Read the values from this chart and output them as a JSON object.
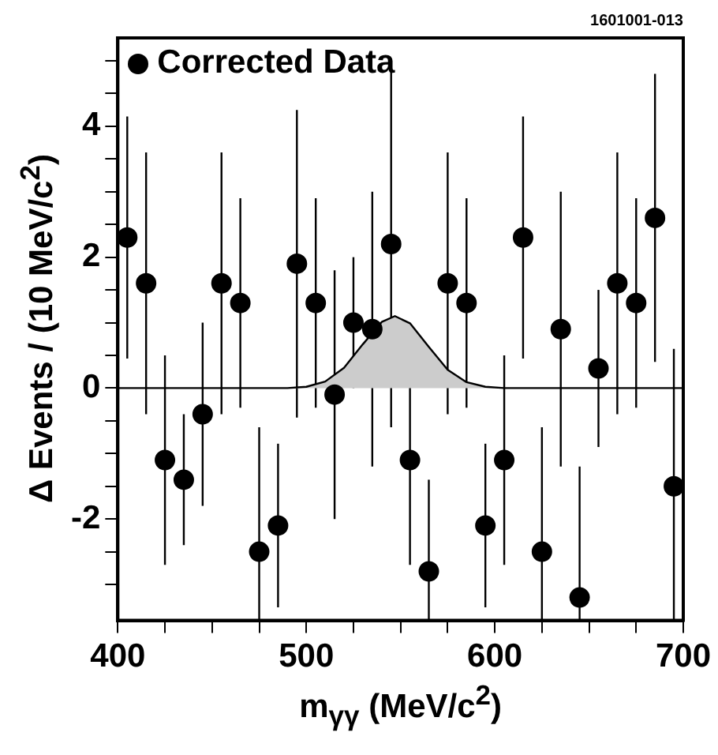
{
  "chart_data": {
    "type": "scatter",
    "xlabel": "m$_{γγ}$ (MeV/c$^{2}$)",
    "ylabel": "Δ Events / (10 MeV/c$^{2}$)",
    "annotations": [
      "1601001-013"
    ],
    "xlim": [
      400,
      700
    ],
    "xticks": [
      400,
      {
        "value": 425,
        "label": null
      },
      {
        "value": 450,
        "label": null
      },
      {
        "value": 475,
        "label": null
      },
      500,
      {
        "value": 525,
        "label": null
      },
      {
        "value": 550,
        "label": null
      },
      {
        "value": 575,
        "label": null
      },
      600,
      {
        "value": 625,
        "label": null
      },
      {
        "value": 650,
        "label": null
      },
      {
        "value": 675,
        "label": null
      },
      700
    ],
    "ylim": [
      -3.55,
      5.35
    ],
    "yticks": [
      {
        "value": -3,
        "label": null
      },
      {
        "value": -2.5,
        "label": null
      },
      -2,
      {
        "value": -1.5,
        "label": null
      },
      {
        "value": -1,
        "label": null
      },
      {
        "value": -0.5,
        "label": null
      },
      0,
      {
        "value": 0.5,
        "label": null
      },
      {
        "value": 1,
        "label": null
      },
      {
        "value": 1.5,
        "label": null
      },
      2,
      {
        "value": 2.5,
        "label": null
      },
      {
        "value": 3,
        "label": null
      },
      {
        "value": 3.5,
        "label": null
      },
      4,
      {
        "value": 4.5,
        "label": null
      },
      {
        "value": 5,
        "label": null
      }
    ],
    "grid": false,
    "legend": "top left",
    "series": [
      {
        "name": "Corrected Data",
        "marker": "circle",
        "color": "#000000",
        "x": [
          405,
          415,
          425,
          435,
          445,
          455,
          465,
          475,
          485,
          495,
          505,
          515,
          525,
          535,
          545,
          555,
          565,
          575,
          585,
          595,
          605,
          615,
          625,
          635,
          645,
          655,
          665,
          675,
          685,
          695
        ],
        "values": [
          2.3,
          1.6,
          -1.1,
          -1.4,
          -0.4,
          1.6,
          1.3,
          -2.5,
          -2.1,
          1.9,
          1.3,
          -0.1,
          1.0,
          0.9,
          2.2,
          -1.1,
          -2.8,
          1.6,
          1.3,
          -2.1,
          -1.1,
          2.3,
          -2.5,
          0.9,
          -3.2,
          0.3,
          1.6,
          1.3,
          2.6,
          -1.5
        ],
        "errors": [
          1.85,
          2.0,
          1.6,
          1.0,
          1.4,
          2.0,
          1.6,
          1.9,
          1.25,
          2.35,
          1.6,
          1.9,
          1.0,
          2.1,
          2.8,
          1.6,
          1.4,
          2.0,
          1.6,
          1.25,
          1.6,
          1.85,
          1.9,
          2.1,
          2.0,
          1.2,
          2.0,
          1.6,
          2.2,
          2.1
        ]
      },
      {
        "type": "area",
        "marker": "none",
        "color": "#cccccc",
        "x": [
          400,
          490,
          500,
          510,
          520,
          530,
          540,
          547,
          555,
          565,
          575,
          585,
          595,
          605,
          700
        ],
        "values": [
          0,
          0,
          0.02,
          0.1,
          0.31,
          0.67,
          1.01,
          1.1,
          0.99,
          0.63,
          0.28,
          0.09,
          0.02,
          0,
          0
        ]
      }
    ]
  }
}
